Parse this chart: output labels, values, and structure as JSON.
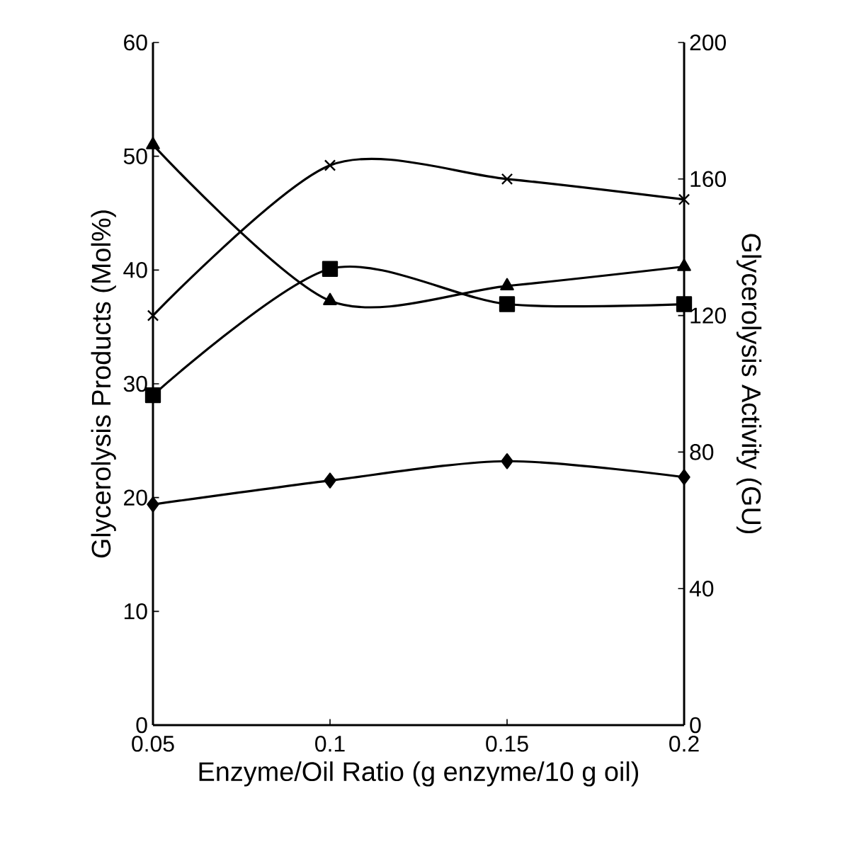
{
  "chart_data": {
    "type": "line",
    "xlabel": "Enzyme/Oil Ratio (g enzyme/10 g oil)",
    "ylabel": "Glycerolysis Products (Mol%)",
    "y2label": "Glycerolysis Activity (GU)",
    "x": [
      0.05,
      0.1,
      0.15,
      0.2
    ],
    "xlim": [
      0.05,
      0.2
    ],
    "xticks": [
      0.05,
      0.1,
      0.15,
      0.2
    ],
    "ylim": [
      0,
      60
    ],
    "yticks": [
      0,
      10,
      20,
      30,
      40,
      50,
      60
    ],
    "y2lim": [
      0,
      200
    ],
    "y2ticks": [
      0,
      40,
      80,
      120,
      160,
      200
    ],
    "line_style": "solid",
    "series": [
      {
        "color": "#000000",
        "marker": "diamond",
        "values": [
          19.4,
          21.5,
          23.2,
          21.8
        ]
      },
      {
        "color": "#000000",
        "marker": "square",
        "values": [
          29,
          40.1,
          37,
          37
        ]
      },
      {
        "color": "#000000",
        "marker": "triangle",
        "values": [
          51,
          37.3,
          38.6,
          40.3
        ]
      },
      {
        "color": "#000000",
        "marker": "cross",
        "axis": "y2",
        "values": [
          120,
          164,
          160,
          154
        ]
      }
    ]
  }
}
